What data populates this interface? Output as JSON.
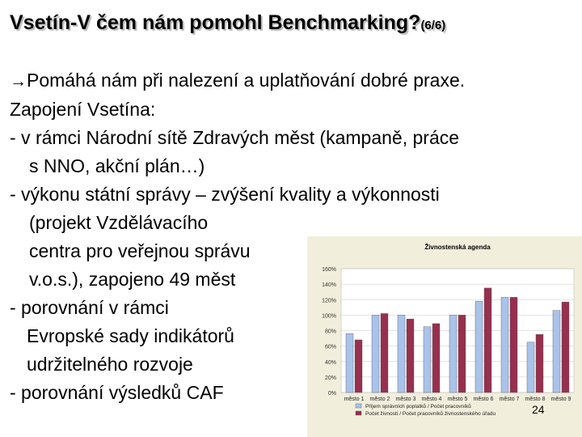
{
  "slide": {
    "title_main": "Vsetín-V čem nám pomohl Benchmarking?",
    "title_suffix": "(6/6)",
    "bullet_symbol": "→",
    "lines": [
      {
        "text": "Pomáhá nám při nalezení a uplatňování dobré praxe.",
        "indent": 0
      },
      {
        "text": "Zapojení Vsetína:",
        "indent": 0
      },
      {
        "text": "- v rámci Národní sítě Zdravých měst (kampaně, práce",
        "indent": 0
      },
      {
        "text": "s NNO, akční plán…)",
        "indent": 1
      },
      {
        "text": "- výkonu státní správy – zvýšení kvality a výkonnosti",
        "indent": 0
      },
      {
        "text": "(projekt Vzdělávacího",
        "indent": 1
      },
      {
        "text": "centra pro veřejnou správu",
        "indent": 1
      },
      {
        "text": "v.o.s.), zapojeno 49 měst",
        "indent": 1
      },
      {
        "text": "-  porovnání v rámci",
        "indent": 0
      },
      {
        "text": "Evropské sady indikátorů",
        "indent": 2
      },
      {
        "text": "udržitelného rozvoje",
        "indent": 2
      },
      {
        "text": "-  porovnání výsledků CAF",
        "indent": 0
      }
    ],
    "page_number": "24"
  },
  "chart_data": {
    "type": "bar",
    "title": "Živnostenská agenda",
    "categories": [
      "město 1",
      "město 2",
      "město 3",
      "město 4",
      "město 5",
      "město 6",
      "město 7",
      "město 8",
      "město 9"
    ],
    "series": [
      {
        "name": "Příjem správních poplatků / Počet pracovníků",
        "color": "#a9c3ea",
        "values": [
          76,
          100,
          100,
          85,
          100,
          118,
          123,
          65,
          106
        ]
      },
      {
        "name": "Počet živností / Počet pracovníků živnostenského úřadu",
        "color": "#96304e",
        "values": [
          68,
          102,
          95,
          89,
          100,
          135,
          123,
          75,
          117
        ]
      }
    ],
    "y_ticks": [
      "0%",
      "20%",
      "40%",
      "60%",
      "80%",
      "100%",
      "120%",
      "140%",
      "160%"
    ],
    "ylim": [
      0,
      160
    ],
    "legend_position": "bottom"
  }
}
